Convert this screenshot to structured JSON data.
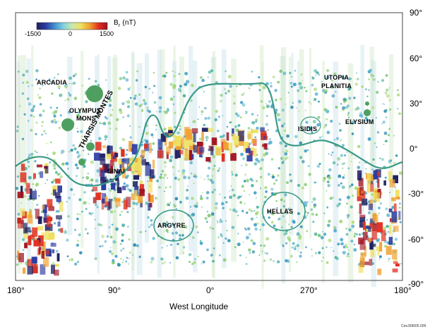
{
  "colorbar": {
    "title": "B",
    "title_sub": "r",
    "units": "(nT)",
    "ticks": [
      "-1500",
      "0",
      "1500"
    ],
    "colors": [
      "#202060",
      "#2b3aa0",
      "#3f8fd0",
      "#7fd0e0",
      "#c8e8b0",
      "#f0e060",
      "#f0a030",
      "#e03020",
      "#a01020"
    ]
  },
  "x_axis": {
    "title": "West Longitude",
    "ticks": [
      "180°",
      "90°",
      "0°",
      "270°",
      "180°"
    ]
  },
  "y_axis": {
    "ticks": [
      "90°",
      "60°",
      "30°",
      "0°",
      "-30°",
      "-60°",
      "-90°"
    ]
  },
  "labels": {
    "arcadia": "ARCADIA",
    "olympus": "OLYMPUS",
    "mons": "MONS",
    "tharsis": "THARSIS MONTES",
    "sinai": "SINAI",
    "argyre": "ARGYRE",
    "hellas": "HELLAS",
    "isidis": "ISIDIS",
    "utopia": "UTOPIA",
    "planitia": "PLANITIA",
    "elysium": "ELYSIUM"
  },
  "credit": "CeeJ99605.009"
}
